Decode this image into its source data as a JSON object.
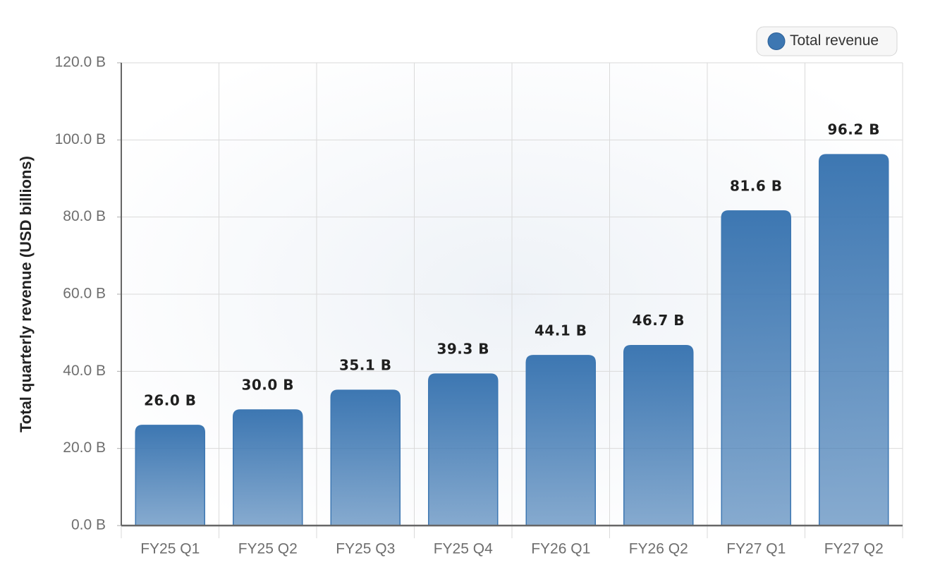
{
  "chart_data": {
    "type": "bar",
    "y_label": "Total quarterly revenue (USD billions)",
    "categories": [
      "FY25 Q1",
      "FY25 Q2",
      "FY25 Q3",
      "FY25 Q4",
      "FY26 Q1",
      "FY26 Q2",
      "FY27 Q1",
      "FY27 Q2"
    ],
    "series": [
      {
        "name": "Total revenue",
        "color": "#3d77b2",
        "values": [
          26.0,
          30.0,
          35.1,
          39.3,
          44.1,
          46.7,
          81.6,
          96.2
        ],
        "value_labels": [
          "26.0 B",
          "30.0 B",
          "35.1 B",
          "39.3 B",
          "44.1 B",
          "46.7 B",
          "81.6 B",
          "96.2 B"
        ]
      }
    ],
    "ylim": [
      0,
      120
    ],
    "yticks": [
      {
        "value": 0,
        "label": "0.0 B"
      },
      {
        "value": 20,
        "label": "20.0 B"
      },
      {
        "value": 40,
        "label": "40.0 B"
      },
      {
        "value": 60,
        "label": "60.0 B"
      },
      {
        "value": 80,
        "label": "80.0 B"
      },
      {
        "value": 100,
        "label": "100.0 B"
      },
      {
        "value": 120,
        "label": "120.0 B"
      }
    ],
    "grid": true,
    "legend": "top-right"
  }
}
